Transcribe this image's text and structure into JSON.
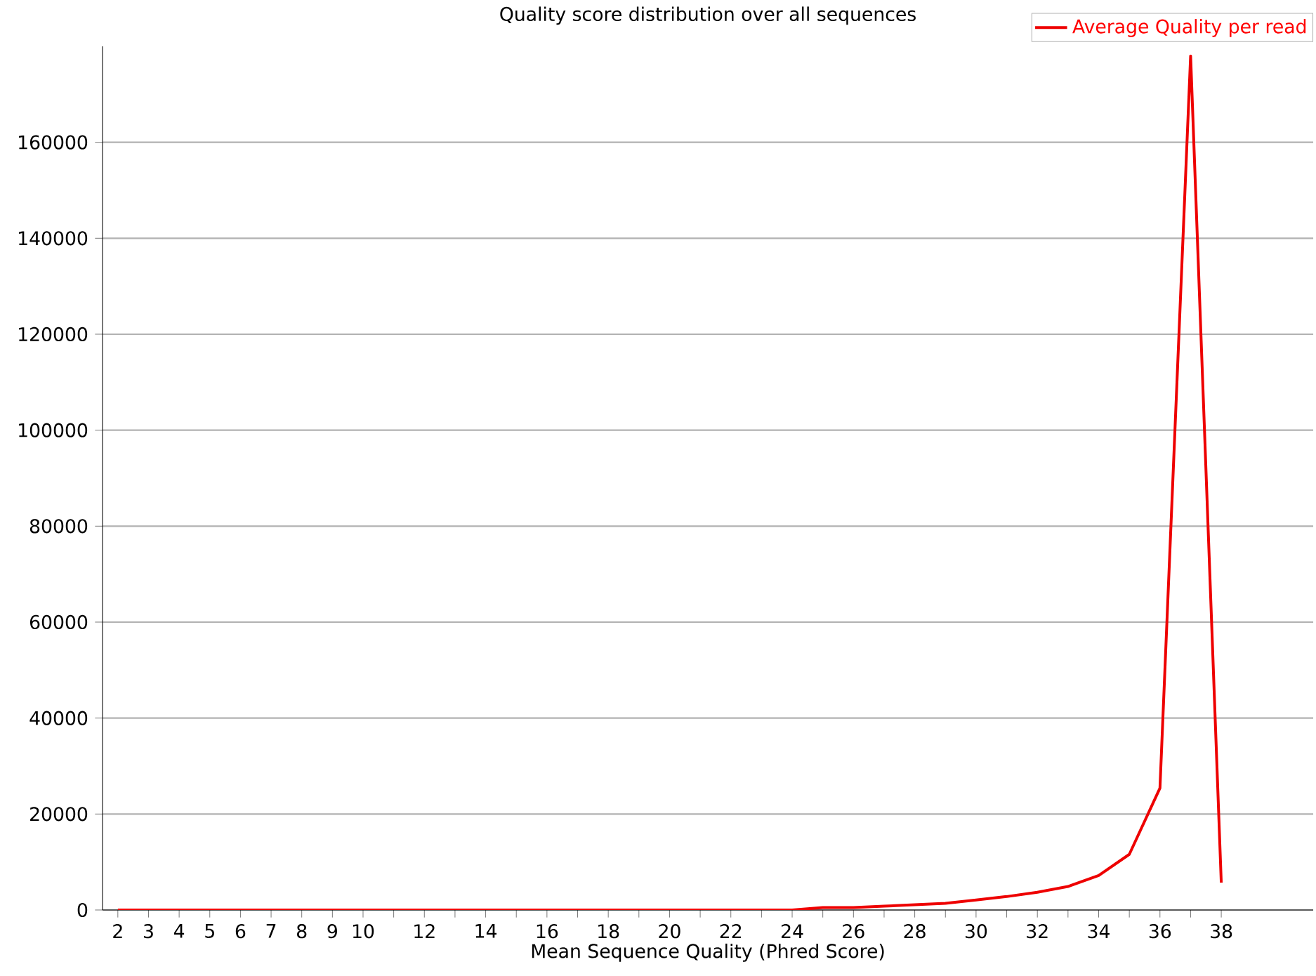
{
  "chart_data": {
    "type": "line",
    "title": "Quality score distribution over all sequences",
    "xlabel": "Mean Sequence Quality (Phred Score)",
    "categories": [
      "2",
      "3",
      "4",
      "5",
      "6",
      "7",
      "8",
      "9",
      "10",
      null,
      "12",
      null,
      "14",
      null,
      "16",
      null,
      "18",
      null,
      "20",
      null,
      "22",
      null,
      "24",
      null,
      "26",
      null,
      "28",
      null,
      "30",
      null,
      "32",
      null,
      "34",
      null,
      "36",
      null,
      "38"
    ],
    "series": [
      {
        "name": "Average Quality per read",
        "color": "#ee0000",
        "values": [
          0,
          0,
          0,
          0,
          0,
          0,
          0,
          0,
          0,
          0,
          0,
          0,
          0,
          0,
          0,
          0,
          0,
          0,
          0,
          0,
          0,
          0,
          0,
          500,
          500,
          800,
          1100,
          1400,
          2100,
          2800,
          3700,
          4900,
          7200,
          11600,
          25400,
          178000,
          5700
        ]
      }
    ],
    "ylim": [
      0,
      180000
    ],
    "yticks": [
      0,
      20000,
      40000,
      60000,
      80000,
      100000,
      120000,
      140000,
      160000
    ],
    "grid": "y",
    "legend": "top right",
    "marker": "none",
    "line_style": "solid"
  }
}
